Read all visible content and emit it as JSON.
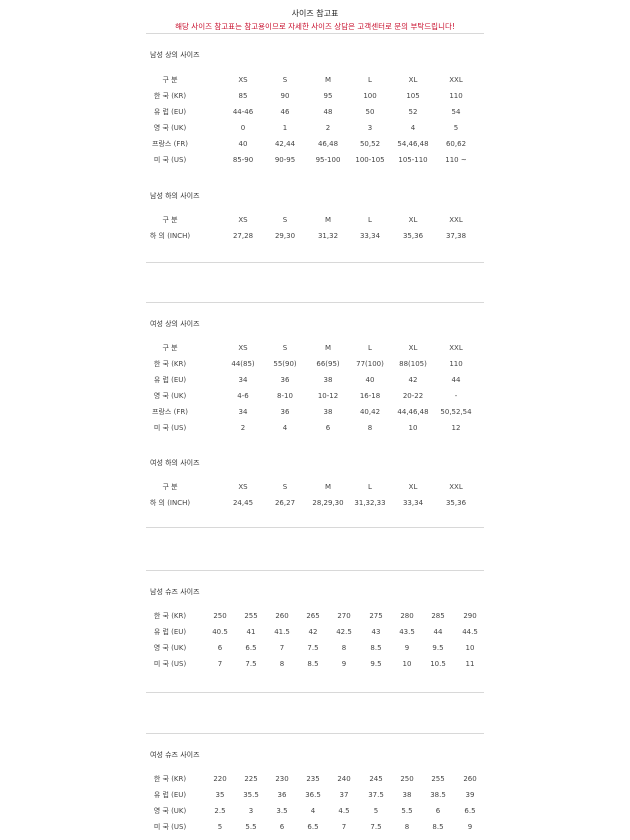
{
  "header": {
    "title": "사이즈 참고표",
    "notice": "해당 사이즈 참고표는 참고용이므로 자세한 사이즈 상담은 고객센터로 문의 부탁드립니다!"
  },
  "accent_color": "#c8102e",
  "sections": [
    {
      "title": "남성 상의 사이즈",
      "rows": [
        [
          "구 분",
          "XS",
          "S",
          "M",
          "L",
          "XL",
          "XXL"
        ],
        [
          "한 국 (KR)",
          "85",
          "90",
          "95",
          "100",
          "105",
          "110"
        ],
        [
          "유 럽 (EU)",
          "44-46",
          "46",
          "48",
          "50",
          "52",
          "54"
        ],
        [
          "영 국 (UK)",
          "0",
          "1",
          "2",
          "3",
          "4",
          "5"
        ],
        [
          "프랑스 (FR)",
          "40",
          "42,44",
          "46,48",
          "50,52",
          "54,46,48",
          "60,62"
        ],
        [
          "미 국 (US)",
          "85-90",
          "90-95",
          "95-100",
          "100-105",
          "105-110",
          "110 ~"
        ]
      ]
    },
    {
      "title": "남성 하의 사이즈",
      "rows": [
        [
          "구 분",
          "XS",
          "S",
          "M",
          "L",
          "XL",
          "XXL"
        ],
        [
          "하 의 (INCH)",
          "27,28",
          "29,30",
          "31,32",
          "33,34",
          "35,36",
          "37,38"
        ]
      ]
    },
    {
      "title": "여성 상의 사이즈",
      "rows": [
        [
          "구 분",
          "XS",
          "S",
          "M",
          "L",
          "XL",
          "XXL"
        ],
        [
          "한 국 (KR)",
          "44(85)",
          "55(90)",
          "66(95)",
          "77(100)",
          "88(105)",
          "110"
        ],
        [
          "유 럽 (EU)",
          "34",
          "36",
          "38",
          "40",
          "42",
          "44"
        ],
        [
          "영 국 (UK)",
          "4-6",
          "8-10",
          "10-12",
          "16-18",
          "20-22",
          "-"
        ],
        [
          "프랑스 (FR)",
          "34",
          "36",
          "38",
          "40,42",
          "44,46,48",
          "50,52,54"
        ],
        [
          "미 국 (US)",
          "2",
          "4",
          "6",
          "8",
          "10",
          "12"
        ]
      ]
    },
    {
      "title": "여성 하의 사이즈",
      "rows": [
        [
          "구 분",
          "XS",
          "S",
          "M",
          "L",
          "XL",
          "XXL"
        ],
        [
          "하 의 (INCH)",
          "24,45",
          "26,27",
          "28,29,30",
          "31,32,33",
          "33,34",
          "35,36"
        ]
      ]
    },
    {
      "title": "남성 슈즈 사이즈",
      "rows": [
        [
          "한 국 (KR)",
          "250",
          "255",
          "260",
          "265",
          "270",
          "275",
          "280",
          "285",
          "290"
        ],
        [
          "유 럽 (EU)",
          "40.5",
          "41",
          "41.5",
          "42",
          "42.5",
          "43",
          "43.5",
          "44",
          "44.5"
        ],
        [
          "영 국 (UK)",
          "6",
          "6.5",
          "7",
          "7.5",
          "8",
          "8.5",
          "9",
          "9.5",
          "10"
        ],
        [
          "미 국 (US)",
          "7",
          "7.5",
          "8",
          "8.5",
          "9",
          "9.5",
          "10",
          "10.5",
          "11"
        ]
      ]
    },
    {
      "title": "여성 슈즈 사이즈",
      "rows": [
        [
          "한 국 (KR)",
          "220",
          "225",
          "230",
          "235",
          "240",
          "245",
          "250",
          "255",
          "260"
        ],
        [
          "유 럽 (EU)",
          "35",
          "35.5",
          "36",
          "36.5",
          "37",
          "37.5",
          "38",
          "38.5",
          "39"
        ],
        [
          "영 국 (UK)",
          "2.5",
          "3",
          "3.5",
          "4",
          "4.5",
          "5",
          "5.5",
          "6",
          "6.5"
        ],
        [
          "미 국 (US)",
          "5",
          "5.5",
          "6",
          "6.5",
          "7",
          "7.5",
          "8",
          "8.5",
          "9"
        ]
      ]
    }
  ]
}
